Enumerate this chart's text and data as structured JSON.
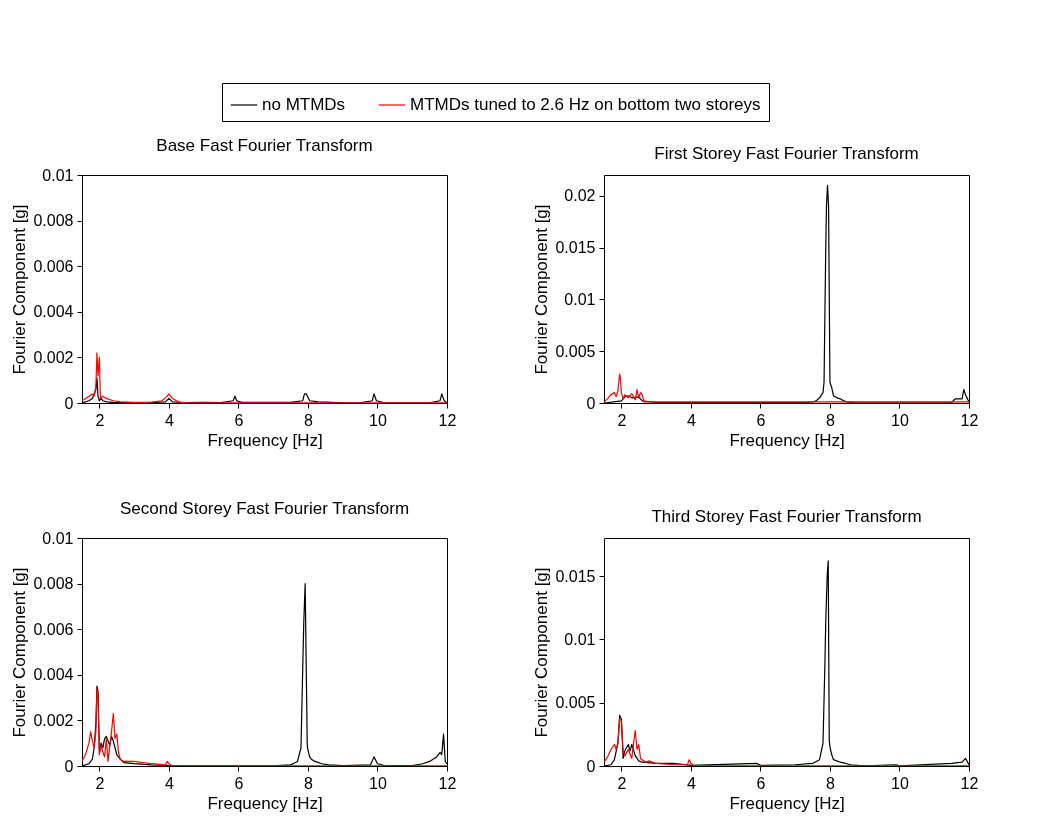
{
  "chart_data": [
    {
      "type": "line",
      "title": "Base Fast Fourier Transform",
      "xlabel": "Frequency [Hz]",
      "ylabel": "Fourier Component [g]",
      "xlim": [
        1.5,
        12
      ],
      "xticks": [
        2,
        4,
        6,
        8,
        10,
        12
      ],
      "ylim": [
        0,
        0.01
      ],
      "yticks": [
        0,
        0.002,
        0.004,
        0.006,
        0.008,
        0.01
      ],
      "legend": "top",
      "series": [
        {
          "name": "no MTMDs",
          "color": "#000000",
          "x": [
            1.5,
            1.7,
            1.8,
            1.9,
            1.93,
            1.96,
            2.0,
            2.05,
            2.1,
            2.2,
            2.4,
            2.6,
            3.0,
            3.5,
            3.9,
            4.0,
            4.1,
            4.5,
            5.0,
            5.5,
            5.85,
            5.9,
            5.95,
            6.1,
            6.5,
            7.0,
            7.5,
            7.85,
            7.9,
            7.95,
            8.05,
            8.3,
            8.7,
            9.0,
            9.5,
            9.85,
            9.9,
            9.97,
            10.2,
            11.0,
            11.5,
            11.8,
            11.85,
            11.92,
            12.0
          ],
          "values": [
            0,
            0.0001,
            0.0002,
            0.0006,
            0.0011,
            0.0003,
            0.0001,
            0.0002,
            0.0001,
            5e-05,
            3e-05,
            2e-05,
            2e-05,
            2e-05,
            5e-05,
            0.0002,
            5e-05,
            2e-05,
            3e-05,
            2e-05,
            0.0001,
            0.0003,
            0.0001,
            3e-05,
            3e-05,
            3e-05,
            3e-05,
            0.0001,
            0.0004,
            0.0004,
            0.0001,
            5e-05,
            3e-05,
            1e-05,
            1e-05,
            0.0001,
            0.0004,
            0.0001,
            1e-05,
            1e-05,
            1e-05,
            0.0001,
            0.0004,
            0.0001,
            1e-05
          ]
        },
        {
          "name": "MTMDs tuned to 2.6 Hz on bottom two storeys",
          "color": "#ff0000",
          "x": [
            1.5,
            1.6,
            1.7,
            1.8,
            1.85,
            1.9,
            1.93,
            1.96,
            2.0,
            2.03,
            2.1,
            2.2,
            2.4,
            2.6,
            3.0,
            3.5,
            3.8,
            3.95,
            4.0,
            4.1,
            4.3,
            4.5,
            12
          ],
          "values": [
            0.0001,
            0.0002,
            0.0003,
            0.0004,
            0.0003,
            0.0007,
            0.0022,
            0.0012,
            0.002,
            0.0002,
            0.0003,
            0.0002,
            0.0001,
            5e-05,
            3e-05,
            4e-05,
            0.0001,
            0.0003,
            0.0004,
            0.0002,
            3e-05,
            1e-05,
            1e-05
          ]
        }
      ]
    },
    {
      "type": "line",
      "title": "First Storey Fast Fourier Transform",
      "xlabel": "Frequency [Hz]",
      "ylabel": "Fourier Component [g]",
      "xlim": [
        1.5,
        12
      ],
      "xticks": [
        2,
        4,
        6,
        8,
        10,
        12
      ],
      "ylim": [
        0,
        0.022
      ],
      "yticks": [
        0,
        0.005,
        0.01,
        0.015,
        0.02
      ],
      "series": [
        {
          "name": "no MTMDs",
          "color": "#000000",
          "x": [
            1.5,
            2.0,
            2.1,
            2.2,
            2.3,
            2.5,
            2.6,
            3,
            5,
            7,
            7.3,
            7.5,
            7.6,
            7.7,
            7.8,
            7.83,
            7.86,
            7.88,
            7.9,
            7.93,
            7.96,
            8.0,
            8.05,
            8.1,
            8.2,
            8.3,
            8.4,
            8.5,
            8.7,
            9,
            11,
            11.5,
            11.6,
            11.8,
            11.85,
            11.9,
            12
          ],
          "values": [
            0,
            0.0002,
            0.0006,
            0.0007,
            0.0005,
            0.0006,
            0.0002,
            5e-05,
            3e-05,
            3e-05,
            5e-05,
            0.0001,
            0.0002,
            0.0005,
            0.001,
            0.002,
            0.01,
            0.015,
            0.019,
            0.021,
            0.019,
            0.002,
            0.0015,
            0.0007,
            0.0005,
            0.0004,
            0.0002,
            0.0001,
            3e-05,
            2e-05,
            2e-05,
            5e-05,
            0.0004,
            0.0004,
            0.0013,
            0.0008,
            0.0001
          ]
        },
        {
          "name": "MTMDs tuned to 2.6 Hz on bottom two storeys",
          "color": "#ff0000",
          "x": [
            1.5,
            1.6,
            1.7,
            1.8,
            1.85,
            1.9,
            1.95,
            1.97,
            2.0,
            2.05,
            2.1,
            2.2,
            2.3,
            2.4,
            2.45,
            2.5,
            2.55,
            2.6,
            2.65,
            12
          ],
          "values": [
            0.0001,
            0.0004,
            0.0008,
            0.001,
            0.0006,
            0.0012,
            0.0028,
            0.0024,
            0.001,
            0.0004,
            0.0008,
            0.0005,
            0.0009,
            0.0003,
            0.0013,
            0.0005,
            0.001,
            0.0008,
            0.0001,
            0.0001
          ]
        }
      ]
    },
    {
      "type": "line",
      "title": "Second Storey Fast Fourier Transform",
      "xlabel": "Frequency [Hz]",
      "ylabel": "Fourier Component [g]",
      "xlim": [
        1.5,
        12
      ],
      "xticks": [
        2,
        4,
        6,
        8,
        10,
        12
      ],
      "ylim": [
        0,
        0.01
      ],
      "yticks": [
        0,
        0.002,
        0.004,
        0.006,
        0.008,
        0.01
      ],
      "series": [
        {
          "name": "no MTMDs",
          "color": "#000000",
          "x": [
            1.5,
            1.7,
            1.8,
            1.85,
            1.9,
            1.93,
            1.96,
            2.0,
            2.05,
            2.1,
            2.15,
            2.2,
            2.3,
            2.35,
            2.4,
            2.45,
            2.5,
            2.55,
            2.6,
            2.7,
            3.0,
            3.5,
            4.0,
            4.5,
            6,
            7,
            7.5,
            7.7,
            7.8,
            7.85,
            7.88,
            7.92,
            7.95,
            7.98,
            8.0,
            8.05,
            8.1,
            8.2,
            8.4,
            8.6,
            9,
            9.8,
            9.9,
            10.0,
            10.2,
            11,
            11.3,
            11.5,
            11.7,
            11.8,
            11.85,
            11.9,
            11.95,
            12
          ],
          "values": [
            0,
            0.0001,
            0.0003,
            0.0008,
            0.0019,
            0.0035,
            0.0033,
            0.0006,
            0.001,
            0.0008,
            0.0012,
            0.0013,
            0.0009,
            0.0013,
            0.0011,
            0.0008,
            0.0005,
            0.0004,
            0.0003,
            0.00015,
            0.0001,
            5e-05,
            2e-05,
            1e-05,
            1e-05,
            1e-05,
            5e-05,
            0.0002,
            0.0008,
            0.0043,
            0.0063,
            0.008,
            0.0044,
            0.0009,
            0.0007,
            0.0004,
            0.0003,
            0.0002,
            0.0001,
            5e-05,
            2e-05,
            5e-05,
            0.0004,
            0.0001,
            2e-05,
            2e-05,
            0.0001,
            0.0002,
            0.0004,
            0.0006,
            0.0005,
            0.0014,
            0.0002,
            0.0001
          ]
        },
        {
          "name": "MTMDs tuned to 2.6 Hz on bottom two storeys",
          "color": "#ff0000",
          "x": [
            1.5,
            1.6,
            1.7,
            1.75,
            1.8,
            1.85,
            1.9,
            1.93,
            1.96,
            1.98,
            2.0,
            2.05,
            2.1,
            2.15,
            2.2,
            2.25,
            2.3,
            2.35,
            2.4,
            2.45,
            2.5,
            2.55,
            2.6,
            2.7,
            3.0,
            3.5,
            3.9,
            3.95,
            4.0,
            4.1,
            12
          ],
          "values": [
            0.0002,
            0.0005,
            0.001,
            0.0015,
            0.0011,
            0.0008,
            0.0015,
            0.0034,
            0.0031,
            0.0018,
            0.0005,
            0.0009,
            0.0006,
            0.0004,
            0.0012,
            0.0002,
            0.0009,
            0.0015,
            0.0023,
            0.0012,
            0.0014,
            0.0006,
            0.0003,
            0.0002,
            0.0002,
            0.0001,
            5e-05,
            0.0002,
            0.0001,
            1e-05,
            1e-05
          ]
        }
      ]
    },
    {
      "type": "line",
      "title": "Third Storey Fast Fourier Transform",
      "xlabel": "Frequency [Hz]",
      "ylabel": "Fourier Component [g]",
      "xlim": [
        1.5,
        12
      ],
      "xticks": [
        2,
        4,
        6,
        8,
        10,
        12
      ],
      "ylim": [
        0,
        0.018
      ],
      "yticks": [
        0,
        0.005,
        0.01,
        0.015
      ],
      "series": [
        {
          "name": "no MTMDs",
          "color": "#000000",
          "x": [
            1.5,
            1.7,
            1.8,
            1.9,
            1.95,
            2.0,
            2.05,
            2.1,
            2.2,
            2.25,
            2.3,
            2.4,
            2.5,
            2.6,
            3.0,
            3.5,
            4.0,
            5.9,
            6.0,
            7.0,
            7.5,
            7.7,
            7.8,
            7.85,
            7.88,
            7.92,
            7.95,
            7.98,
            8.0,
            8.05,
            8.1,
            8.3,
            8.6,
            9,
            9.9,
            10,
            11.5,
            11.8,
            11.9,
            12
          ],
          "values": [
            0,
            0.0001,
            0.0005,
            0.0018,
            0.004,
            0.0037,
            0.0006,
            0.0012,
            0.0017,
            0.0012,
            0.0017,
            0.0008,
            0.0004,
            0.0003,
            0.0002,
            0.0002,
            5e-05,
            0.0002,
            5e-05,
            0.0001,
            0.0002,
            0.0005,
            0.0018,
            0.0075,
            0.0115,
            0.015,
            0.0162,
            0.002,
            0.0015,
            0.0009,
            0.0005,
            0.0003,
            0.0001,
            2e-05,
            0.0001,
            2e-05,
            0.0002,
            0.0003,
            0.0006,
            0.0001
          ]
        },
        {
          "name": "MTMDs tuned to 2.6 Hz on bottom two storeys",
          "color": "#ff0000",
          "x": [
            1.5,
            1.6,
            1.7,
            1.8,
            1.85,
            1.9,
            1.95,
            2.0,
            2.05,
            2.1,
            2.2,
            2.3,
            2.35,
            2.4,
            2.45,
            2.5,
            2.55,
            2.6,
            2.7,
            2.8,
            3.0,
            3.5,
            3.9,
            3.95,
            4.0,
            4.1,
            12
          ],
          "values": [
            0.0003,
            0.0007,
            0.0013,
            0.0017,
            0.0013,
            0.0018,
            0.0037,
            0.0036,
            0.0012,
            0.0008,
            0.0013,
            0.0006,
            0.0018,
            0.0028,
            0.0013,
            0.0017,
            0.0006,
            0.0005,
            0.0003,
            0.0004,
            0.0002,
            0.0001,
            0.0001,
            0.0005,
            0.0002,
            1e-05,
            1e-05
          ]
        }
      ]
    }
  ]
}
